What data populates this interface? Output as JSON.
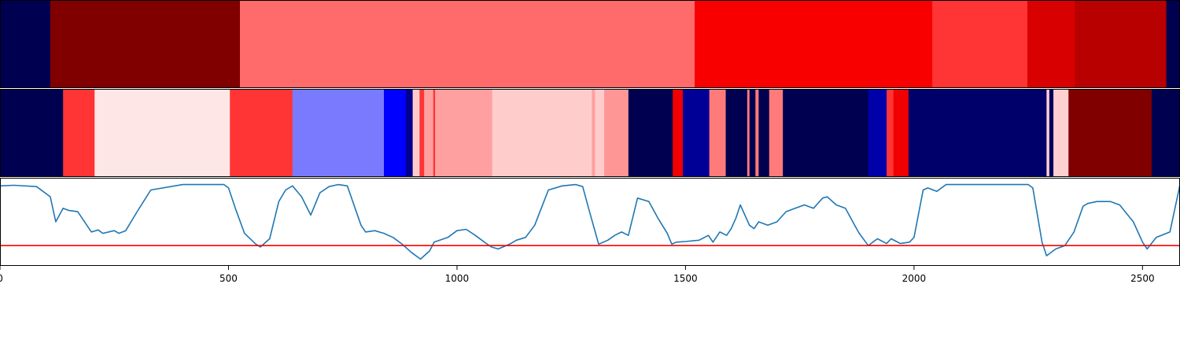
{
  "chart_data": [
    {
      "type": "heatmap",
      "panel": "top",
      "segments": [
        {
          "start": 0,
          "end": 110,
          "color": "#000050"
        },
        {
          "start": 110,
          "end": 525,
          "color": "#800000"
        },
        {
          "start": 525,
          "end": 1520,
          "color": "#ff6a6a"
        },
        {
          "start": 1520,
          "end": 2040,
          "color": "#f80000"
        },
        {
          "start": 2040,
          "end": 2248,
          "color": "#ff3434"
        },
        {
          "start": 2248,
          "end": 2352,
          "color": "#d80000"
        },
        {
          "start": 2352,
          "end": 2552,
          "color": "#b80000"
        },
        {
          "start": 2552,
          "end": 2582,
          "color": "#000050"
        }
      ]
    },
    {
      "type": "heatmap",
      "panel": "middle",
      "segments": [
        {
          "start": 0,
          "end": 138,
          "color": "#000050"
        },
        {
          "start": 138,
          "end": 207,
          "color": "#ff3434"
        },
        {
          "start": 207,
          "end": 503,
          "color": "#ffe6e6"
        },
        {
          "start": 503,
          "end": 640,
          "color": "#ff3434"
        },
        {
          "start": 640,
          "end": 840,
          "color": "#7a7aff"
        },
        {
          "start": 840,
          "end": 888,
          "color": "#0000ff"
        },
        {
          "start": 888,
          "end": 903,
          "color": "#000090"
        },
        {
          "start": 903,
          "end": 918,
          "color": "#ffcccc"
        },
        {
          "start": 918,
          "end": 928,
          "color": "#ff3434"
        },
        {
          "start": 928,
          "end": 948,
          "color": "#ffa0a0"
        },
        {
          "start": 948,
          "end": 952,
          "color": "#ff3434"
        },
        {
          "start": 952,
          "end": 1077,
          "color": "#ffa0a0"
        },
        {
          "start": 1077,
          "end": 1090,
          "color": "#ffcccc"
        },
        {
          "start": 1090,
          "end": 1295,
          "color": "#ffcccc"
        },
        {
          "start": 1295,
          "end": 1302,
          "color": "#ffa0a0"
        },
        {
          "start": 1302,
          "end": 1322,
          "color": "#ffcccc"
        },
        {
          "start": 1322,
          "end": 1375,
          "color": "#ff9696"
        },
        {
          "start": 1375,
          "end": 1472,
          "color": "#000050"
        },
        {
          "start": 1472,
          "end": 1494,
          "color": "#f00000"
        },
        {
          "start": 1494,
          "end": 1552,
          "color": "#000096"
        },
        {
          "start": 1552,
          "end": 1588,
          "color": "#ff7a7a"
        },
        {
          "start": 1588,
          "end": 1635,
          "color": "#000050"
        },
        {
          "start": 1635,
          "end": 1640,
          "color": "#ff7a7a"
        },
        {
          "start": 1640,
          "end": 1653,
          "color": "#000050"
        },
        {
          "start": 1653,
          "end": 1660,
          "color": "#ff7a7a"
        },
        {
          "start": 1660,
          "end": 1683,
          "color": "#000050"
        },
        {
          "start": 1683,
          "end": 1713,
          "color": "#ff7a7a"
        },
        {
          "start": 1713,
          "end": 1727,
          "color": "#000050"
        },
        {
          "start": 1727,
          "end": 1900,
          "color": "#000050"
        },
        {
          "start": 1900,
          "end": 1940,
          "color": "#0000aa"
        },
        {
          "start": 1940,
          "end": 1955,
          "color": "#ff3434"
        },
        {
          "start": 1955,
          "end": 1988,
          "color": "#f00000"
        },
        {
          "start": 1988,
          "end": 2290,
          "color": "#00006a"
        },
        {
          "start": 2290,
          "end": 2296,
          "color": "#ffd0d0"
        },
        {
          "start": 2296,
          "end": 2305,
          "color": "#000060"
        },
        {
          "start": 2305,
          "end": 2338,
          "color": "#ffd0d0"
        },
        {
          "start": 2338,
          "end": 2520,
          "color": "#800000"
        },
        {
          "start": 2520,
          "end": 2582,
          "color": "#000050"
        }
      ]
    },
    {
      "type": "line",
      "panel": "bottom",
      "xlim": [
        0,
        2582
      ],
      "ylim": [
        -0.3,
        1.0
      ],
      "threshold": 0.0,
      "threshold_color": "#ff0000",
      "line_color": "#1f77b4",
      "xticks": [
        0,
        500,
        1000,
        1500,
        2000,
        2500
      ],
      "xtick_labels": [
        "0",
        "500",
        "1000",
        "1500",
        "2000",
        "2500"
      ],
      "x": [
        0,
        30,
        80,
        110,
        122,
        138,
        150,
        170,
        200,
        215,
        225,
        250,
        260,
        275,
        300,
        330,
        400,
        430,
        470,
        490,
        500,
        515,
        535,
        560,
        570,
        590,
        610,
        625,
        640,
        660,
        680,
        700,
        720,
        740,
        760,
        790,
        800,
        820,
        840,
        860,
        880,
        900,
        920,
        940,
        950,
        980,
        1000,
        1020,
        1040,
        1060,
        1075,
        1090,
        1115,
        1130,
        1150,
        1170,
        1200,
        1230,
        1260,
        1275,
        1290,
        1310,
        1330,
        1345,
        1360,
        1375,
        1395,
        1420,
        1440,
        1460,
        1470,
        1480,
        1500,
        1530,
        1550,
        1560,
        1575,
        1590,
        1600,
        1610,
        1620,
        1640,
        1650,
        1660,
        1680,
        1700,
        1720,
        1740,
        1760,
        1780,
        1800,
        1810,
        1830,
        1850,
        1870,
        1880,
        1900,
        1910,
        1920,
        1940,
        1950,
        1970,
        1990,
        2000,
        2020,
        2030,
        2050,
        2070,
        2100,
        2150,
        2200,
        2250,
        2260,
        2280,
        2290,
        2310,
        2330,
        2350,
        2370,
        2380,
        2400,
        2430,
        2450,
        2480,
        2500,
        2510,
        2530,
        2560,
        2582
      ],
      "y": [
        0.88,
        0.89,
        0.87,
        0.72,
        0.35,
        0.55,
        0.52,
        0.5,
        0.2,
        0.23,
        0.18,
        0.22,
        0.18,
        0.22,
        0.5,
        0.82,
        0.9,
        0.9,
        0.9,
        0.9,
        0.85,
        0.55,
        0.18,
        0.02,
        -0.02,
        0.1,
        0.65,
        0.82,
        0.88,
        0.72,
        0.45,
        0.78,
        0.87,
        0.9,
        0.88,
        0.3,
        0.2,
        0.22,
        0.18,
        0.12,
        0.02,
        -0.1,
        -0.2,
        -0.08,
        0.05,
        0.12,
        0.22,
        0.24,
        0.15,
        0.05,
        -0.02,
        -0.05,
        0.02,
        0.08,
        0.12,
        0.3,
        0.82,
        0.88,
        0.9,
        0.87,
        0.5,
        0.02,
        0.08,
        0.15,
        0.2,
        0.15,
        0.7,
        0.65,
        0.4,
        0.18,
        0.02,
        0.05,
        0.06,
        0.08,
        0.15,
        0.05,
        0.2,
        0.15,
        0.25,
        0.4,
        0.6,
        0.3,
        0.25,
        0.35,
        0.3,
        0.35,
        0.5,
        0.55,
        0.6,
        0.55,
        0.7,
        0.72,
        0.6,
        0.55,
        0.3,
        0.18,
        0.0,
        0.05,
        0.1,
        0.03,
        0.1,
        0.03,
        0.05,
        0.12,
        0.82,
        0.85,
        0.8,
        0.9,
        0.9,
        0.9,
        0.9,
        0.9,
        0.85,
        0.05,
        -0.15,
        -0.05,
        0.0,
        0.2,
        0.58,
        0.62,
        0.65,
        0.65,
        0.6,
        0.35,
        0.05,
        -0.05,
        0.12,
        0.2,
        0.9
      ]
    }
  ]
}
